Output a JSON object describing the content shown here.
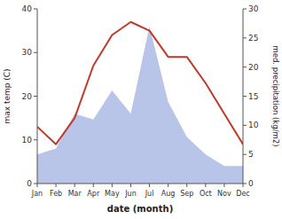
{
  "chart_data": {
    "type": "line",
    "xlabel": "date (month)",
    "ylabel": "max temp (C)",
    "y2label": "med. precipitation (kg/m2)",
    "categories": [
      "Jan",
      "Feb",
      "Mar",
      "Apr",
      "May",
      "Jun",
      "Jul",
      "Aug",
      "Sep",
      "Oct",
      "Nov",
      "Dec"
    ],
    "series": [
      {
        "type": "area",
        "axis": "y2",
        "color": "#b8c4e8",
        "values": [
          5,
          6,
          12,
          11,
          16,
          12,
          27,
          14,
          8,
          5,
          3,
          3
        ]
      },
      {
        "type": "line",
        "color": "#c0392b",
        "values": [
          13,
          9,
          15,
          27,
          34,
          37,
          35,
          29,
          29,
          23,
          16,
          9
        ]
      }
    ],
    "ylim": [
      0,
      40
    ],
    "yticks": [
      0,
      10,
      20,
      30,
      40
    ],
    "y2lim": [
      0,
      30
    ],
    "y2ticks": [
      0,
      5,
      10,
      15,
      20,
      25,
      30
    ],
    "grid": false
  }
}
